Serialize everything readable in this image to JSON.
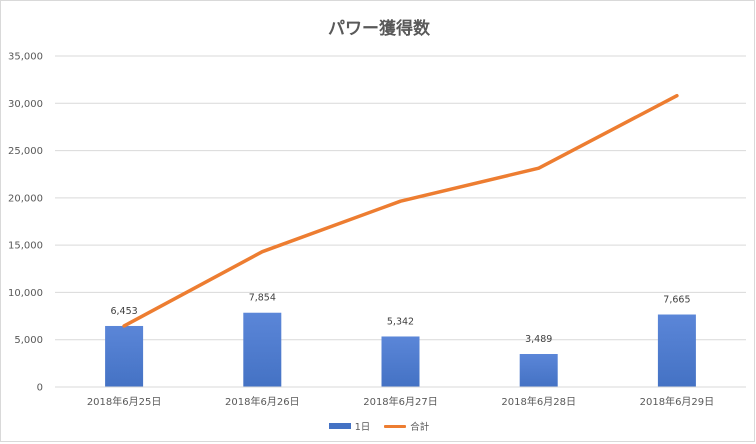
{
  "colors": {
    "bar": "#4472c4",
    "bar_light": "#5b86d8",
    "line": "#ed7d31",
    "grid": "#d9d9d9",
    "axis_text": "#595959"
  },
  "chart_data": {
    "type": "bar",
    "title": "パワー獲得数",
    "categories": [
      "2018年6月25日",
      "2018年6月26日",
      "2018年6月27日",
      "2018年6月28日",
      "2018年6月29日"
    ],
    "series": [
      {
        "name": "1日",
        "type": "bar",
        "values": [
          6453,
          7854,
          5342,
          3489,
          7665
        ],
        "labels": [
          "6,453",
          "7,854",
          "5,342",
          "3,489",
          "7,665"
        ]
      },
      {
        "name": "合計",
        "type": "line",
        "values": [
          6453,
          14307,
          19649,
          23138,
          30803
        ]
      }
    ],
    "ylim": [
      0,
      35000
    ],
    "yticks": [
      0,
      5000,
      10000,
      15000,
      20000,
      25000,
      30000,
      35000
    ],
    "ytick_labels": [
      "0",
      "5,000",
      "10,000",
      "15,000",
      "20,000",
      "25,000",
      "30,000",
      "35,000"
    ],
    "grid": true,
    "legend_position": "bottom"
  }
}
